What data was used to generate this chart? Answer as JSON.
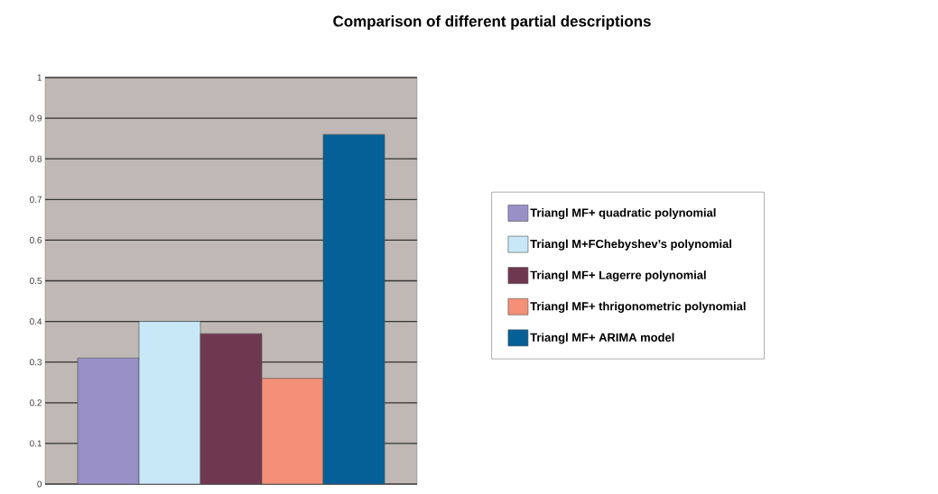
{
  "chart_data": {
    "type": "bar",
    "title": "Comparison of different partial descriptions",
    "categories": [
      null
    ],
    "series": [
      {
        "name": "Triangl MF+ quadratic polynomial",
        "color": "#9990c8",
        "values": [
          0.31
        ]
      },
      {
        "name": "Triangl M+FChebyshev’s polynomial",
        "color": "#c8e8f8",
        "values": [
          0.4
        ]
      },
      {
        "name": "Triangl MF+ Lagerre polynomial",
        "color": "#703850",
        "values": [
          0.37
        ]
      },
      {
        "name": "Triangl MF+ thrigonometric  polynomial",
        "color": "#f49078",
        "values": [
          0.26
        ]
      },
      {
        "name": "Triangl MF+ ARIMA model",
        "color": "#056098",
        "values": [
          0.86
        ]
      }
    ],
    "ylim": [
      0,
      1
    ],
    "yticks": [
      0,
      0.1,
      0.2,
      0.3,
      0.4,
      0.5,
      0.6,
      0.7,
      0.8,
      0.9,
      1
    ],
    "grid": "y",
    "legend": "right"
  }
}
